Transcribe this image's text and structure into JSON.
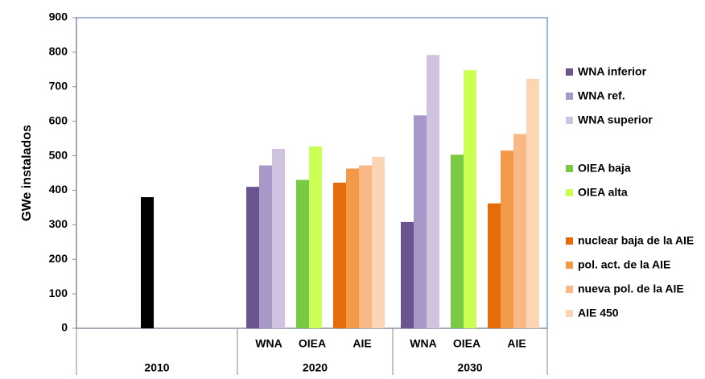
{
  "chart_data": {
    "type": "bar",
    "y_label": "GWe instalados",
    "ylim": [
      0,
      900
    ],
    "yticks": [
      0,
      100,
      200,
      300,
      400,
      500,
      600,
      700,
      800,
      900
    ],
    "categories": [
      "2010",
      "2020",
      "2030"
    ],
    "subcategories": [
      [],
      [
        "WNA",
        "OIEA",
        "AIE"
      ],
      [
        "WNA",
        "OIEA",
        "AIE"
      ]
    ],
    "series": [
      {
        "color": "#000000",
        "values": [
          380,
          null,
          null
        ]
      },
      {
        "name": "WNA inferior",
        "color": "#6b5490",
        "values": [
          null,
          410,
          308
        ]
      },
      {
        "name": "WNA ref.",
        "color": "#a898c8",
        "values": [
          null,
          472,
          617
        ]
      },
      {
        "name": "WNA superior",
        "color": "#cfc3e0",
        "values": [
          null,
          520,
          792
        ]
      },
      {
        "name": "OIEA baja",
        "color": "#7ac943",
        "values": [
          null,
          430,
          503
        ]
      },
      {
        "name": "OIEA alta",
        "color": "#ccff55",
        "values": [
          null,
          527,
          748
        ]
      },
      {
        "name": "nuclear baja de la AIE",
        "color": "#e46c0a",
        "values": [
          null,
          422,
          362
        ]
      },
      {
        "name": "pol. act. de la AIE",
        "color": "#f39a4a",
        "values": [
          null,
          463,
          515
        ]
      },
      {
        "name": "nueva pol. de la AIE",
        "color": "#f9b886",
        "values": [
          null,
          472,
          563
        ]
      },
      {
        "name": "AIE 450",
        "color": "#fcd5b4",
        "values": [
          null,
          497,
          723
        ]
      }
    ]
  }
}
